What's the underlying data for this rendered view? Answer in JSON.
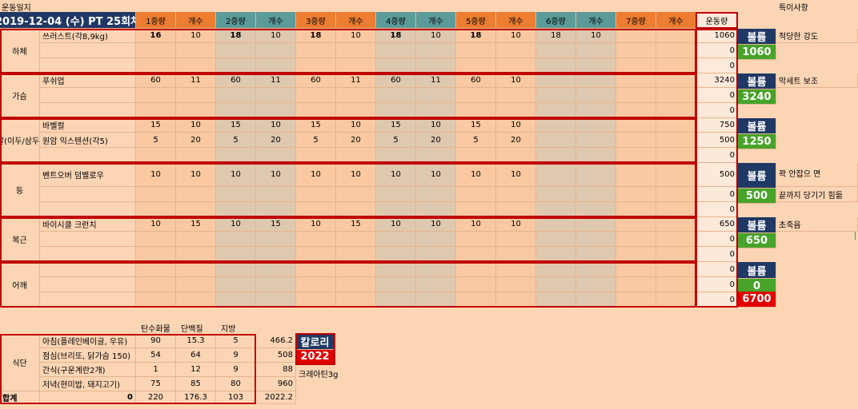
{
  "title": "운동일지",
  "date_header": "2019-12-04 (수) PT 25회차",
  "notes_title": "특이사항",
  "set_headers": [
    "1중량",
    "개수",
    "2중량",
    "개수",
    "3중량",
    "개수",
    "4중량",
    "개수",
    "5중량",
    "개수",
    "6중량",
    "개수",
    "7중량",
    "개수"
  ],
  "volume_header": "운동량",
  "volume_label": "볼륨",
  "groups": [
    {
      "name": "하체",
      "total": "1060",
      "rows": [
        {
          "exercise": "쓰러스트(각8,9kg)",
          "cells": [
            "16",
            "10",
            "18",
            "10",
            "18",
            "10",
            "18",
            "10",
            "18",
            "10",
            "18",
            "10",
            "",
            ""
          ],
          "volume": "1060"
        },
        {
          "exercise": "",
          "cells": [
            "",
            "",
            "",
            "",
            "",
            "",
            "",
            "",
            "",
            "",
            "",
            "",
            "",
            ""
          ],
          "volume": "0"
        },
        {
          "exercise": "",
          "cells": [
            "",
            "",
            "",
            "",
            "",
            "",
            "",
            "",
            "",
            "",
            "",
            "",
            "",
            ""
          ],
          "volume": "0"
        }
      ],
      "notes": [
        "적당한 강도",
        "",
        ""
      ]
    },
    {
      "name": "가슴",
      "total": "3240",
      "rows": [
        {
          "exercise": "푸쉬업",
          "cells": [
            "60",
            "11",
            "60",
            "11",
            "60",
            "11",
            "60",
            "11",
            "60",
            "10",
            "",
            "",
            "",
            ""
          ],
          "volume": "3240"
        },
        {
          "exercise": "",
          "cells": [
            "",
            "",
            "",
            "",
            "",
            "",
            "",
            "",
            "",
            "",
            "",
            "",
            "",
            ""
          ],
          "volume": "0"
        },
        {
          "exercise": "",
          "cells": [
            "",
            "",
            "",
            "",
            "",
            "",
            "",
            "",
            "",
            "",
            "",
            "",
            "",
            ""
          ],
          "volume": "0"
        }
      ],
      "notes": [
        "막세트 보조",
        "",
        ""
      ]
    },
    {
      "name": "팔(이두/삼두)",
      "total": "1250",
      "rows": [
        {
          "exercise": "바벨컬",
          "cells": [
            "15",
            "10",
            "15",
            "10",
            "15",
            "10",
            "15",
            "10",
            "15",
            "10",
            "",
            "",
            "",
            ""
          ],
          "volume": "750"
        },
        {
          "exercise": "원암 익스텐션(각5)",
          "cells": [
            "5",
            "20",
            "5",
            "20",
            "5",
            "20",
            "5",
            "20",
            "5",
            "20",
            "",
            "",
            "",
            ""
          ],
          "volume": "500"
        },
        {
          "exercise": "",
          "cells": [
            "",
            "",
            "",
            "",
            "",
            "",
            "",
            "",
            "",
            "",
            "",
            "",
            "",
            ""
          ],
          "volume": "0"
        }
      ],
      "notes": [
        "",
        "",
        ""
      ]
    },
    {
      "name": "등",
      "total": "500",
      "rows": [
        {
          "exercise": "벤트오버 덤벨로우",
          "cells": [
            "10",
            "10",
            "10",
            "10",
            "10",
            "10",
            "10",
            "10",
            "10",
            "10",
            "",
            "",
            "",
            ""
          ],
          "volume": "500"
        },
        {
          "exercise": "",
          "cells": [
            "",
            "",
            "",
            "",
            "",
            "",
            "",
            "",
            "",
            "",
            "",
            "",
            "",
            ""
          ],
          "volume": "0"
        },
        {
          "exercise": "",
          "cells": [
            "",
            "",
            "",
            "",
            "",
            "",
            "",
            "",
            "",
            "",
            "",
            "",
            "",
            ""
          ],
          "volume": "0"
        }
      ],
      "notes": [
        "꽉 안잡으 면",
        "끝까지 당기기 힘듦",
        ""
      ]
    },
    {
      "name": "복근",
      "total": "650",
      "rows": [
        {
          "exercise": "바이시클 크런치",
          "cells": [
            "10",
            "15",
            "10",
            "15",
            "10",
            "15",
            "10",
            "10",
            "10",
            "10",
            "",
            "",
            "",
            ""
          ],
          "volume": "650"
        },
        {
          "exercise": "",
          "cells": [
            "",
            "",
            "",
            "",
            "",
            "",
            "",
            "",
            "",
            "",
            "",
            "",
            "",
            ""
          ],
          "volume": "0"
        },
        {
          "exercise": "",
          "cells": [
            "",
            "",
            "",
            "",
            "",
            "",
            "",
            "",
            "",
            "",
            "",
            "",
            "",
            ""
          ],
          "volume": "0"
        }
      ],
      "notes": [
        "초죽음",
        "",
        ""
      ]
    },
    {
      "name": "어깨",
      "total": "0",
      "rows": [
        {
          "exercise": "",
          "cells": [
            "",
            "",
            "",
            "",
            "",
            "",
            "",
            "",
            "",
            "",
            "",
            "",
            "",
            ""
          ],
          "volume": "0"
        },
        {
          "exercise": "",
          "cells": [
            "",
            "",
            "",
            "",
            "",
            "",
            "",
            "",
            "",
            "",
            "",
            "",
            "",
            ""
          ],
          "volume": "0"
        },
        {
          "exercise": "",
          "cells": [
            "",
            "",
            "",
            "",
            "",
            "",
            "",
            "",
            "",
            "",
            "",
            "",
            "",
            ""
          ],
          "volume": "0"
        }
      ],
      "notes": [
        "",
        "",
        ""
      ]
    }
  ],
  "grand_total": "6700",
  "diet": {
    "label": "식단",
    "headers": [
      "탄수화물",
      "단백질",
      "지방"
    ],
    "rows": [
      {
        "meal": "아침(플레인베이글, 우유)",
        "carb": "90",
        "protein": "15.3",
        "fat": "5",
        "kcal": "466.2"
      },
      {
        "meal": "점심(브리또, 닭가슴 150)",
        "carb": "54",
        "protein": "64",
        "fat": "9",
        "kcal": "508"
      },
      {
        "meal": "간식(구운계란2개)",
        "carb": "1",
        "protein": "12",
        "fat": "9",
        "kcal": "88"
      },
      {
        "meal": "저녁(현미밥, 돼지고기)",
        "carb": "75",
        "protein": "85",
        "fat": "80",
        "kcal": "960"
      }
    ],
    "total_label": "합계",
    "total_zero": "0",
    "totals": {
      "carb": "220",
      "protein": "176.3",
      "fat": "103",
      "kcal": "2022.2"
    },
    "calorie_label": "칼로리",
    "calorie_value": "2022",
    "supplement": "크레아틴3g"
  },
  "colors": {
    "sheet_bg": "#fcd5b5",
    "header_navy": "#1f3864",
    "header_orange": "#ed7d31",
    "header_teal": "#5b9b9a",
    "volume_box": "#1f3864",
    "total_box": "#47a329",
    "grand_total_box": "#e00000",
    "gray_cell": "#dfc8b0",
    "red_border": "#c00000"
  }
}
